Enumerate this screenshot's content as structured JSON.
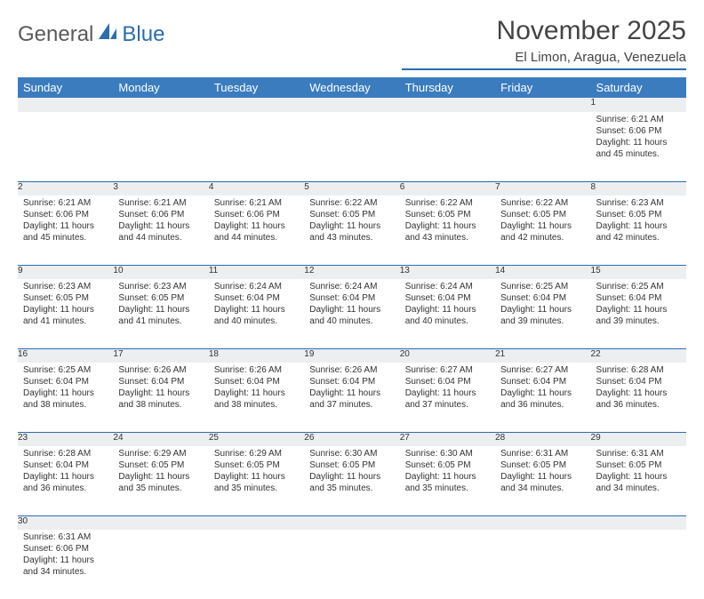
{
  "logo": {
    "text1": "General",
    "text2": "Blue"
  },
  "title": "November 2025",
  "location": "El Limon, Aragua, Venezuela",
  "colors": {
    "header_bg": "#3b7cbf",
    "header_text": "#ffffff",
    "rule": "#2a6db0",
    "daynum_bg": "#eceef0",
    "logo_gray": "#5a5a5a",
    "logo_blue": "#2a6db0"
  },
  "days": [
    "Sunday",
    "Monday",
    "Tuesday",
    "Wednesday",
    "Thursday",
    "Friday",
    "Saturday"
  ],
  "weeks": [
    [
      null,
      null,
      null,
      null,
      null,
      null,
      {
        "n": "1",
        "sr": "6:21 AM",
        "ss": "6:06 PM",
        "dl": "11 hours and 45 minutes."
      }
    ],
    [
      {
        "n": "2",
        "sr": "6:21 AM",
        "ss": "6:06 PM",
        "dl": "11 hours and 45 minutes."
      },
      {
        "n": "3",
        "sr": "6:21 AM",
        "ss": "6:06 PM",
        "dl": "11 hours and 44 minutes."
      },
      {
        "n": "4",
        "sr": "6:21 AM",
        "ss": "6:06 PM",
        "dl": "11 hours and 44 minutes."
      },
      {
        "n": "5",
        "sr": "6:22 AM",
        "ss": "6:05 PM",
        "dl": "11 hours and 43 minutes."
      },
      {
        "n": "6",
        "sr": "6:22 AM",
        "ss": "6:05 PM",
        "dl": "11 hours and 43 minutes."
      },
      {
        "n": "7",
        "sr": "6:22 AM",
        "ss": "6:05 PM",
        "dl": "11 hours and 42 minutes."
      },
      {
        "n": "8",
        "sr": "6:23 AM",
        "ss": "6:05 PM",
        "dl": "11 hours and 42 minutes."
      }
    ],
    [
      {
        "n": "9",
        "sr": "6:23 AM",
        "ss": "6:05 PM",
        "dl": "11 hours and 41 minutes."
      },
      {
        "n": "10",
        "sr": "6:23 AM",
        "ss": "6:05 PM",
        "dl": "11 hours and 41 minutes."
      },
      {
        "n": "11",
        "sr": "6:24 AM",
        "ss": "6:04 PM",
        "dl": "11 hours and 40 minutes."
      },
      {
        "n": "12",
        "sr": "6:24 AM",
        "ss": "6:04 PM",
        "dl": "11 hours and 40 minutes."
      },
      {
        "n": "13",
        "sr": "6:24 AM",
        "ss": "6:04 PM",
        "dl": "11 hours and 40 minutes."
      },
      {
        "n": "14",
        "sr": "6:25 AM",
        "ss": "6:04 PM",
        "dl": "11 hours and 39 minutes."
      },
      {
        "n": "15",
        "sr": "6:25 AM",
        "ss": "6:04 PM",
        "dl": "11 hours and 39 minutes."
      }
    ],
    [
      {
        "n": "16",
        "sr": "6:25 AM",
        "ss": "6:04 PM",
        "dl": "11 hours and 38 minutes."
      },
      {
        "n": "17",
        "sr": "6:26 AM",
        "ss": "6:04 PM",
        "dl": "11 hours and 38 minutes."
      },
      {
        "n": "18",
        "sr": "6:26 AM",
        "ss": "6:04 PM",
        "dl": "11 hours and 38 minutes."
      },
      {
        "n": "19",
        "sr": "6:26 AM",
        "ss": "6:04 PM",
        "dl": "11 hours and 37 minutes."
      },
      {
        "n": "20",
        "sr": "6:27 AM",
        "ss": "6:04 PM",
        "dl": "11 hours and 37 minutes."
      },
      {
        "n": "21",
        "sr": "6:27 AM",
        "ss": "6:04 PM",
        "dl": "11 hours and 36 minutes."
      },
      {
        "n": "22",
        "sr": "6:28 AM",
        "ss": "6:04 PM",
        "dl": "11 hours and 36 minutes."
      }
    ],
    [
      {
        "n": "23",
        "sr": "6:28 AM",
        "ss": "6:04 PM",
        "dl": "11 hours and 36 minutes."
      },
      {
        "n": "24",
        "sr": "6:29 AM",
        "ss": "6:05 PM",
        "dl": "11 hours and 35 minutes."
      },
      {
        "n": "25",
        "sr": "6:29 AM",
        "ss": "6:05 PM",
        "dl": "11 hours and 35 minutes."
      },
      {
        "n": "26",
        "sr": "6:30 AM",
        "ss": "6:05 PM",
        "dl": "11 hours and 35 minutes."
      },
      {
        "n": "27",
        "sr": "6:30 AM",
        "ss": "6:05 PM",
        "dl": "11 hours and 35 minutes."
      },
      {
        "n": "28",
        "sr": "6:31 AM",
        "ss": "6:05 PM",
        "dl": "11 hours and 34 minutes."
      },
      {
        "n": "29",
        "sr": "6:31 AM",
        "ss": "6:05 PM",
        "dl": "11 hours and 34 minutes."
      }
    ],
    [
      {
        "n": "30",
        "sr": "6:31 AM",
        "ss": "6:06 PM",
        "dl": "11 hours and 34 minutes."
      },
      null,
      null,
      null,
      null,
      null,
      null
    ]
  ],
  "labels": {
    "sunrise": "Sunrise: ",
    "sunset": "Sunset: ",
    "daylight": "Daylight: "
  }
}
